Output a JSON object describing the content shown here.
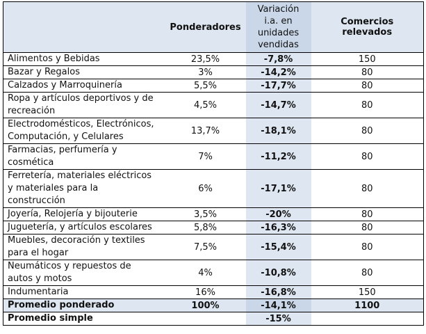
{
  "header": {
    "ponderadores": "Ponderadores",
    "variacion": [
      "Variación",
      "i.a. en",
      "unidades",
      "vendidas"
    ],
    "comercios": [
      "Comercios",
      "relevados"
    ]
  },
  "rows": [
    {
      "cat": [
        "Alimentos y Bebidas"
      ],
      "pond": "23,5%",
      "var": "-7,8%",
      "com": "150"
    },
    {
      "cat": [
        "Bazar y Regalos"
      ],
      "pond": "3%",
      "var": "-14,2%",
      "com": "80"
    },
    {
      "cat": [
        "Calzados y Marroquinería"
      ],
      "pond": "5,5%",
      "var": "-17,7%",
      "com": "80"
    },
    {
      "cat": [
        "Ropa y artículos deportivos y de",
        "recreación"
      ],
      "pond": "4,5%",
      "var": "-14,7%",
      "com": "80"
    },
    {
      "cat": [
        "Electrodomésticos, Electrónicos,",
        "Computación, y Celulares"
      ],
      "pond": "13,7%",
      "var": "-18,1%",
      "com": "80"
    },
    {
      "cat": [
        "Farmacias, perfumería y",
        "cosmética"
      ],
      "pond": "7%",
      "var": "-11,2%",
      "com": "80"
    },
    {
      "cat": [
        "Ferretería, materiales eléctricos",
        "y materiales para la",
        "construcción"
      ],
      "pond": "6%",
      "var": "-17,1%",
      "com": "80"
    },
    {
      "cat": [
        "Joyería, Relojería y bijouterie"
      ],
      "pond": "3,5%",
      "var": "-20%",
      "com": "80"
    },
    {
      "cat": [
        "Juguetería, y artículos escolares"
      ],
      "pond": "5,8%",
      "var": "-16,3%",
      "com": "80"
    },
    {
      "cat": [
        "Muebles, decoración y textiles",
        "para el hogar"
      ],
      "pond": "7,5%",
      "var": "-15,4%",
      "com": "80"
    },
    {
      "cat": [
        "Neumáticos y repuestos de",
        "autos y motos"
      ],
      "pond": "4%",
      "var": "-10,8%",
      "com": "80"
    },
    {
      "cat": [
        "Indumentaria"
      ],
      "pond": "16%",
      "var": "-16,8%",
      "com": "150"
    }
  ],
  "promedio_ponderado": {
    "label": "Promedio ponderado",
    "pond": "100%",
    "var": "-14,1%",
    "com": "1100"
  },
  "promedio_simple": {
    "label": "Promedio simple",
    "var": "-15%"
  }
}
